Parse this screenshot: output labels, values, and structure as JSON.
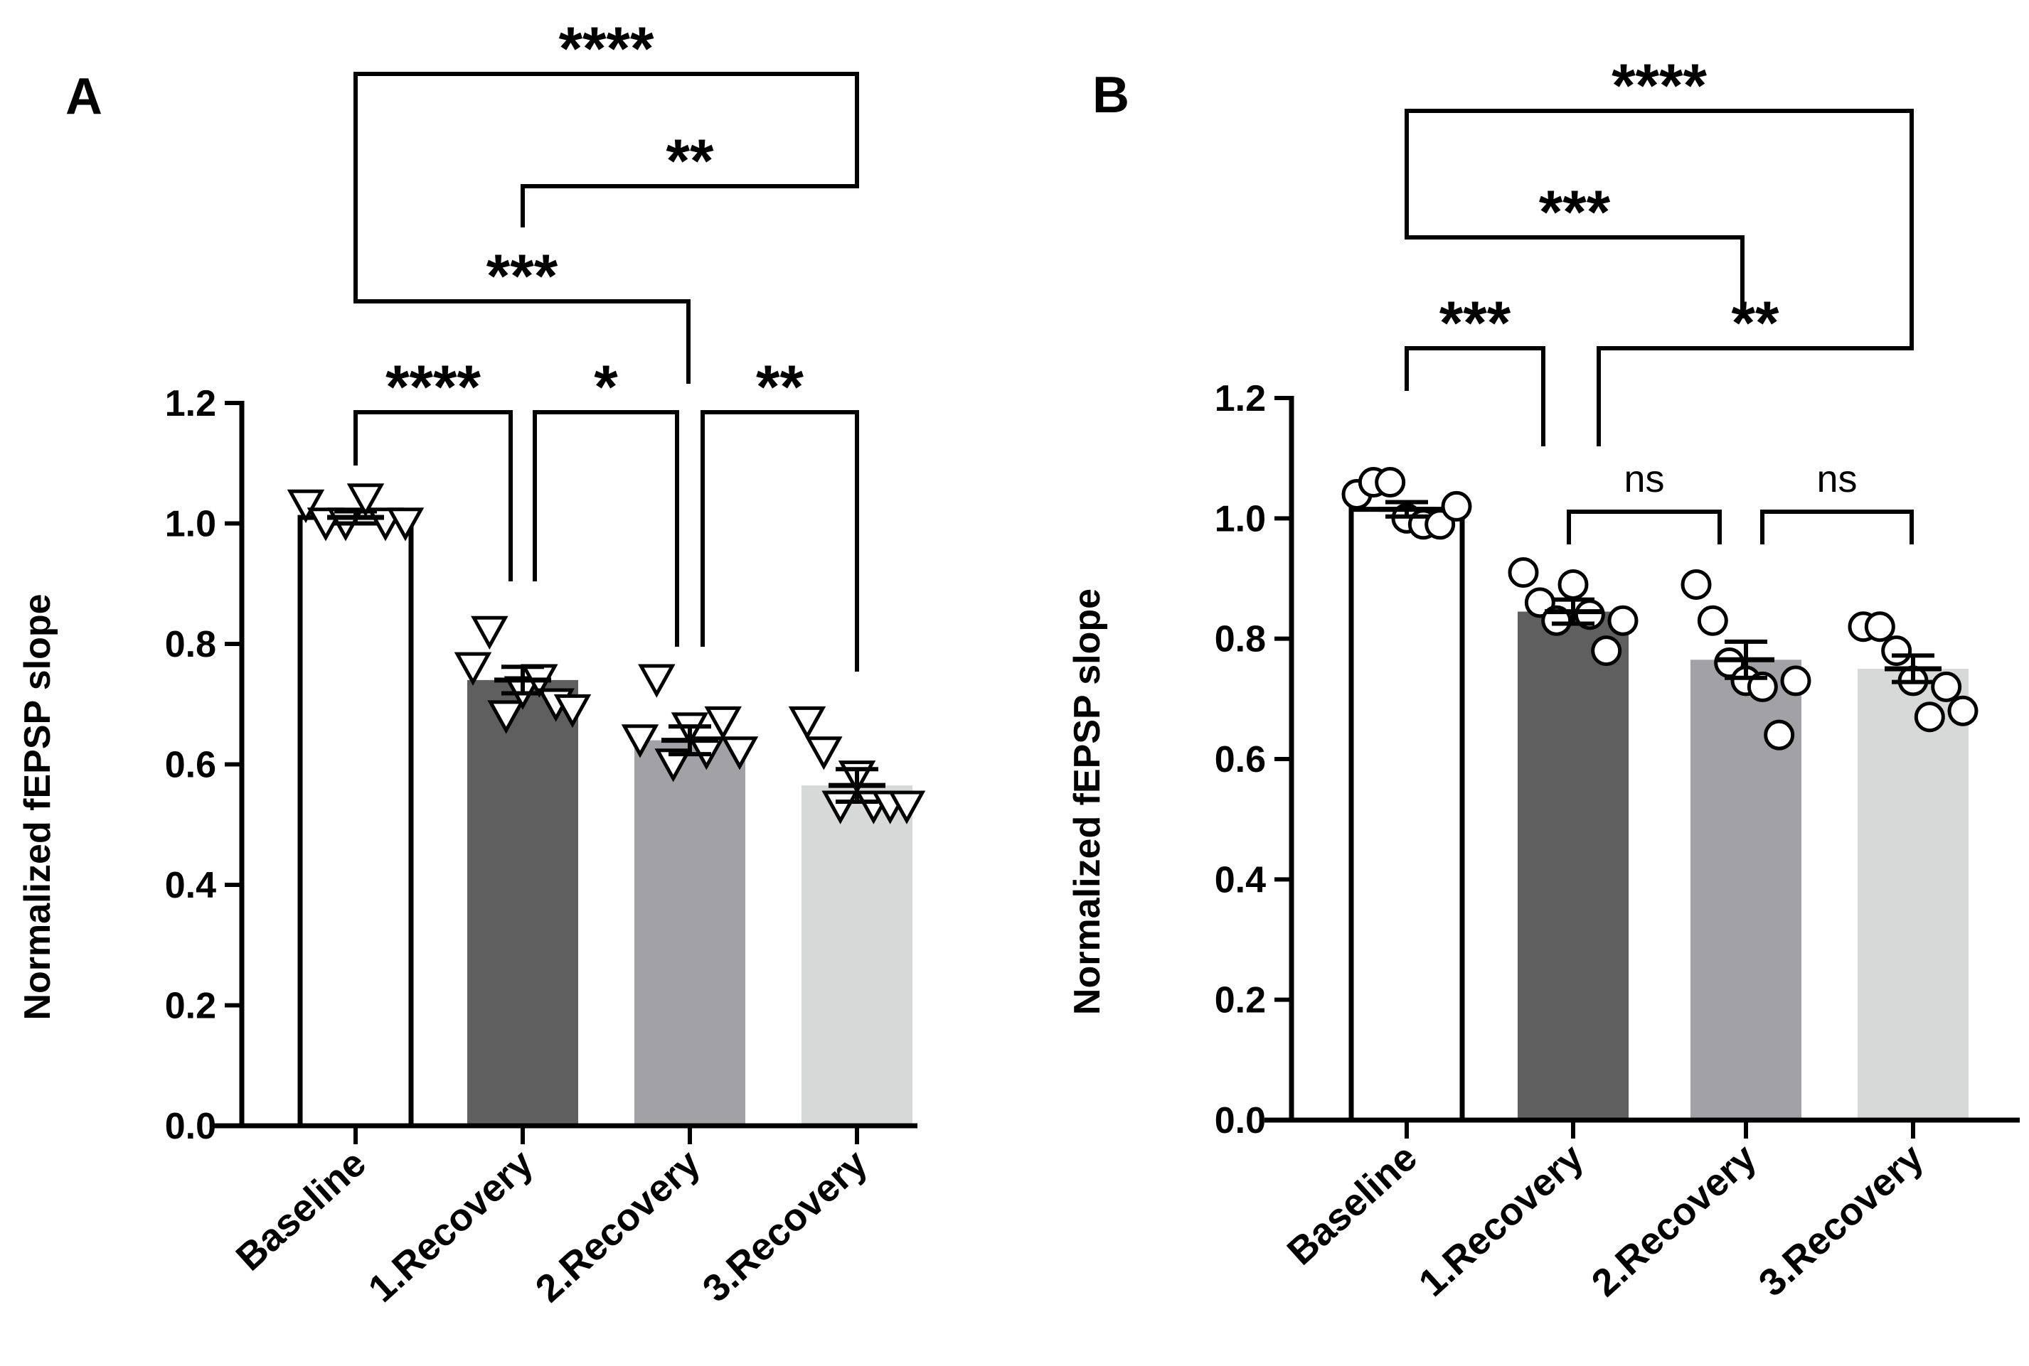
{
  "chart_data": [
    {
      "panel": "A",
      "type": "bar",
      "ylabel": "Normalized fEPSP slope",
      "ylim": [
        0,
        1.2
      ],
      "yticks": [
        "0.0",
        "0.2",
        "0.4",
        "0.6",
        "0.8",
        "1.0",
        "1.2"
      ],
      "categories": [
        "Baseline",
        "1.Recovery",
        "2.Recovery",
        "3.Recovery"
      ],
      "colors": [
        "#ffffff",
        "#5f5f5f",
        "#a2a2a6",
        "#d7d8d8"
      ],
      "marker": "triangle-down",
      "values": [
        1.01,
        0.74,
        0.64,
        0.565
      ],
      "sem": [
        0.01,
        0.022,
        0.023,
        0.027
      ],
      "points": [
        [
          1.03,
          1.0,
          1.0,
          1.04,
          1.0,
          1.0
        ],
        [
          0.76,
          0.82,
          0.68,
          0.72,
          0.74,
          0.7,
          0.69
        ],
        [
          0.64,
          0.74,
          0.6,
          0.66,
          0.62,
          0.67,
          0.62
        ],
        [
          0.67,
          0.62,
          0.53,
          0.58,
          0.53,
          0.53,
          0.53
        ]
      ],
      "comparisons": [
        {
          "from": 0,
          "to": 3,
          "label": "****"
        },
        {
          "from": 1,
          "to": 3,
          "label": "**"
        },
        {
          "from": 0,
          "to": 2,
          "label": "***"
        },
        {
          "from": 0,
          "to": 1,
          "label": "****"
        },
        {
          "from": 1,
          "to": 2,
          "label": "*"
        },
        {
          "from": 2,
          "to": 3,
          "label": "**"
        }
      ]
    },
    {
      "panel": "B",
      "type": "bar",
      "ylabel": "Normalized fEPSP slope",
      "ylim": [
        0,
        1.2
      ],
      "yticks": [
        "0.0",
        "0.2",
        "0.4",
        "0.6",
        "0.8",
        "1.0",
        "1.2"
      ],
      "categories": [
        "Baseline",
        "1.Recovery",
        "2.Recovery",
        "3.Recovery"
      ],
      "colors": [
        "#ffffff",
        "#5f5f5f",
        "#a2a2a6",
        "#d7d8d8"
      ],
      "marker": "circle",
      "values": [
        1.015,
        0.845,
        0.765,
        0.75
      ],
      "sem": [
        0.012,
        0.02,
        0.03,
        0.022
      ],
      "points": [
        [
          1.04,
          1.06,
          1.06,
          1.0,
          0.99,
          0.99,
          1.02
        ],
        [
          0.91,
          0.86,
          0.83,
          0.89,
          0.84,
          0.78,
          0.83
        ],
        [
          0.89,
          0.83,
          0.76,
          0.73,
          0.72,
          0.64,
          0.73
        ],
        [
          0.82,
          0.82,
          0.78,
          0.73,
          0.67,
          0.72,
          0.68
        ]
      ],
      "comparisons": [
        {
          "from": 0,
          "to": 3,
          "label": "****"
        },
        {
          "from": 0,
          "to": 2,
          "label": "***"
        },
        {
          "from": 0,
          "to": 1,
          "label": "***"
        },
        {
          "from": 1,
          "to": 3,
          "label": "**"
        },
        {
          "from": 1,
          "to": 2,
          "label": "ns"
        },
        {
          "from": 2,
          "to": 3,
          "label": "ns"
        }
      ]
    }
  ]
}
